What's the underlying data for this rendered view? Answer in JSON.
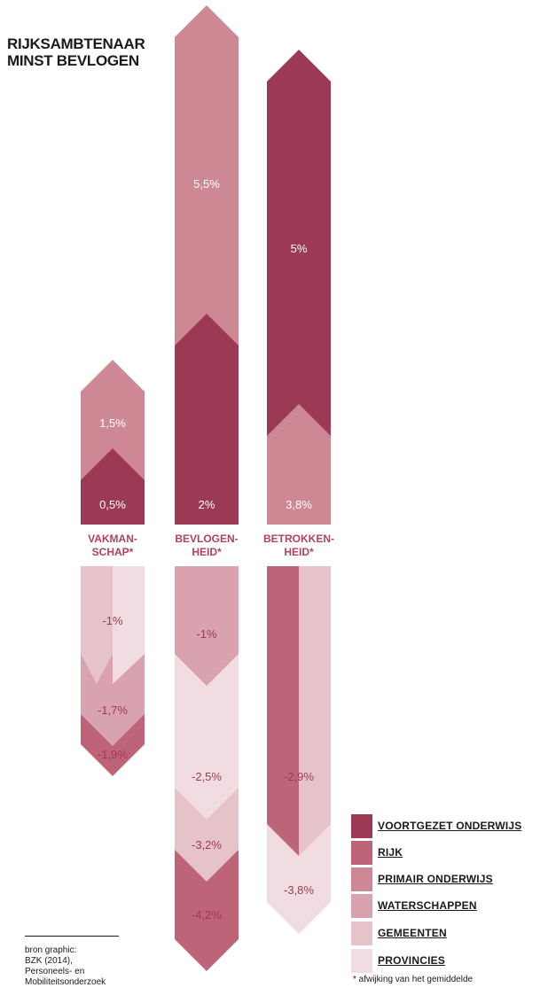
{
  "title": [
    "RIJKSAMBTENAAR",
    "MINST BEVLOGEN"
  ],
  "colors": {
    "voortgezet_onderwijs": "#9c3a55",
    "rijk": "#be6478",
    "primair_onderwijs": "#cd8893",
    "waterschappen": "#d8a2ae",
    "gemeenten": "#e6c2c9",
    "provincies": "#f1dde1",
    "positive_label": "#ffffff",
    "negative_label": "#9c3a55"
  },
  "chart_data": {
    "type": "bar",
    "categories": [
      "VAKMANSCHAP*",
      "BEVLOGENHEID*",
      "BETROKKENHEID*"
    ],
    "category_label_lines": [
      [
        "VAKMAN-",
        "SCHAP*"
      ],
      [
        "BEVLOGEN-",
        "HEID*"
      ],
      [
        "BETROKKEN-",
        "HEID*"
      ]
    ],
    "series": [
      {
        "name": "VOORTGEZET ONDERWIJS",
        "values": [
          0.5,
          2,
          5
        ]
      },
      {
        "name": "RIJK",
        "values": [
          -1.9,
          -4.2,
          -2.9
        ]
      },
      {
        "name": "PRIMAIR ONDERWIJS",
        "values": [
          1.5,
          5.5,
          3.8
        ]
      },
      {
        "name": "WATERSCHAPPEN",
        "values": [
          -1.7,
          -1,
          null
        ]
      },
      {
        "name": "GEMEENTEN",
        "values": [
          -1,
          -3.2,
          -2.9
        ]
      },
      {
        "name": "PROVINCIES",
        "values": [
          -1,
          -2.5,
          -3.8
        ]
      }
    ],
    "value_labels": {
      "positive": [
        [
          {
            "series": "PRIMAIR ONDERWIJS",
            "label": "1,5%"
          },
          {
            "series": "VOORTGEZET ONDERWIJS",
            "label": "0,5%"
          }
        ],
        [
          {
            "series": "PRIMAIR ONDERWIJS",
            "label": "5,5%"
          },
          {
            "series": "VOORTGEZET ONDERWIJS",
            "label": "2%"
          }
        ],
        [
          {
            "series": "VOORTGEZET ONDERWIJS",
            "label": "5%"
          },
          {
            "series": "PRIMAIR ONDERWIJS",
            "label": "3,8%"
          }
        ]
      ],
      "negative": [
        [
          {
            "series": "GEMEENTEN / PROVINCIES",
            "label": "-1%"
          },
          {
            "series": "WATERSCHAPPEN",
            "label": "-1,7%"
          },
          {
            "series": "RIJK",
            "label": "-1,9%"
          }
        ],
        [
          {
            "series": "WATERSCHAPPEN",
            "label": "-1%"
          },
          {
            "series": "PROVINCIES",
            "label": "-2,5%"
          },
          {
            "series": "GEMEENTEN",
            "label": "-3,2%"
          },
          {
            "series": "RIJK",
            "label": "-4,2%"
          }
        ],
        [
          {
            "series": "RIJK / GEMEENTEN",
            "label": "-2,9%"
          },
          {
            "series": "PROVINCIES",
            "label": "-3,8%"
          }
        ]
      ]
    }
  },
  "legend": [
    {
      "label": "VOORTGEZET ONDERWIJS",
      "color": "#9c3a55"
    },
    {
      "label": "RIJK",
      "color": "#be6478"
    },
    {
      "label": "PRIMAIR ONDERWIJS",
      "color": "#cd8893"
    },
    {
      "label": "WATERSCHAPPEN",
      "color": "#d8a2ae"
    },
    {
      "label": "GEMEENTEN",
      "color": "#e6c2c9"
    },
    {
      "label": "PROVINCIES",
      "color": "#f1dde1"
    }
  ],
  "footnote": "* afwijking van het gemiddelde",
  "source": [
    "bron graphic:",
    "BZK (2014),",
    "Personeels- en",
    "Mobiliteitsonderzoek"
  ]
}
